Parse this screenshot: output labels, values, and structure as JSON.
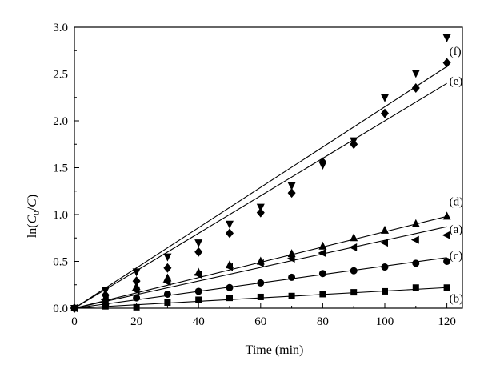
{
  "chart_data": {
    "type": "scatter",
    "title": "",
    "xlabel": "Time (min)",
    "ylabel_parts": {
      "pre": "ln(",
      "c": "C",
      "sub": "0",
      "post": "/",
      "c2": "C",
      "close": ")"
    },
    "xlim": [
      0,
      125
    ],
    "ylim": [
      0,
      3.0
    ],
    "xticks": [
      "0",
      "20",
      "40",
      "60",
      "80",
      "100",
      "120"
    ],
    "xtick_values": [
      0,
      20,
      40,
      60,
      80,
      100,
      120
    ],
    "yticks": [
      "0.0",
      "0.5",
      "1.0",
      "1.5",
      "2.0",
      "2.5",
      "3.0"
    ],
    "ytick_values": [
      0.0,
      0.5,
      1.0,
      1.5,
      2.0,
      2.5,
      3.0
    ],
    "grid": false,
    "x": [
      0,
      10,
      20,
      30,
      40,
      50,
      60,
      70,
      80,
      90,
      100,
      110,
      120
    ],
    "series": [
      {
        "name": "(a)",
        "marker": "triangle-left",
        "values": [
          0,
          0.09,
          0.19,
          0.28,
          0.36,
          0.44,
          0.48,
          0.53,
          0.59,
          0.65,
          0.7,
          0.73,
          0.78
        ],
        "fit_end": 0.87
      },
      {
        "name": "(b)",
        "marker": "square",
        "values": [
          0,
          0.02,
          0.01,
          0.06,
          0.09,
          0.11,
          0.12,
          0.13,
          0.15,
          0.17,
          0.18,
          0.22,
          0.22
        ],
        "fit_end": 0.22
      },
      {
        "name": "(c)",
        "marker": "circle",
        "values": [
          0,
          0.04,
          0.11,
          0.15,
          0.18,
          0.22,
          0.27,
          0.33,
          0.37,
          0.4,
          0.44,
          0.48,
          0.5
        ],
        "fit_end": 0.54
      },
      {
        "name": "(d)",
        "marker": "triangle-up",
        "values": [
          0,
          0.11,
          0.23,
          0.32,
          0.38,
          0.46,
          0.5,
          0.58,
          0.66,
          0.75,
          0.83,
          0.9,
          0.98
        ],
        "fit_end": 0.98
      },
      {
        "name": "(e)",
        "marker": "diamond",
        "values": [
          0,
          0.14,
          0.29,
          0.43,
          0.6,
          0.8,
          1.02,
          1.23,
          1.56,
          1.75,
          2.08,
          2.35,
          2.62
        ],
        "fit_end": 2.4
      },
      {
        "name": "(f)",
        "marker": "triangle-down",
        "values": [
          0,
          0.19,
          0.39,
          0.55,
          0.7,
          0.9,
          1.08,
          1.31,
          1.53,
          1.79,
          2.25,
          2.51,
          2.89
        ],
        "fit_end": 2.58
      }
    ]
  }
}
